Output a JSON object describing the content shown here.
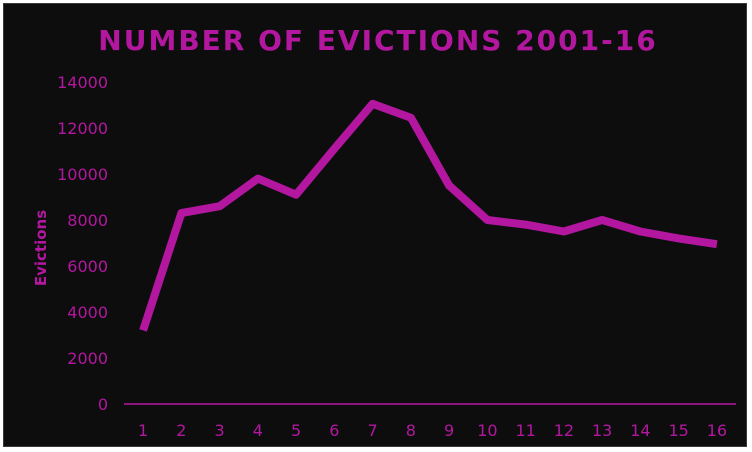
{
  "colors": {
    "background": "#0d0d0e",
    "accent": "#b3179f",
    "axis": "#b3179f"
  },
  "chart_data": {
    "type": "line",
    "title": "NUMBER OF EVICTIONS 2001-16",
    "xlabel": "",
    "ylabel": "Evictions",
    "categories": [
      "1",
      "2",
      "3",
      "4",
      "5",
      "6",
      "7",
      "8",
      "9",
      "10",
      "11",
      "12",
      "13",
      "14",
      "15",
      "16"
    ],
    "series": [
      {
        "values": [
          3200,
          8300,
          8600,
          9800,
          9100,
          11100,
          13050,
          12450,
          9500,
          8000,
          7800,
          7500,
          8000,
          7500,
          7200,
          6950
        ]
      }
    ],
    "ylim": [
      0,
      14000
    ],
    "yticks": [
      "0",
      "2000",
      "4000",
      "6000",
      "8000",
      "10000",
      "12000",
      "14000"
    ],
    "grid": false,
    "legend": "none"
  }
}
